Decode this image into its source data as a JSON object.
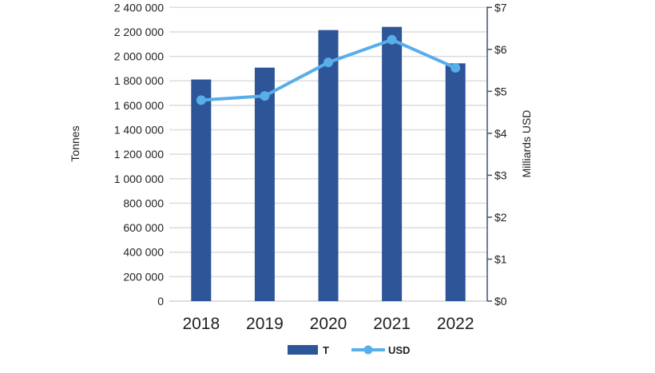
{
  "chart_data": {
    "type": "bar",
    "categories": [
      "2018",
      "2019",
      "2020",
      "2021",
      "2022"
    ],
    "series": [
      {
        "name": "T",
        "type": "bar",
        "axis": "left",
        "color": "#2e5597",
        "values": [
          1811000,
          1908000,
          2215000,
          2241000,
          1943000
        ]
      },
      {
        "name": "USD",
        "type": "line",
        "axis": "right",
        "color": "#57aeea",
        "values": [
          4.79,
          4.89,
          5.69,
          6.23,
          5.56
        ]
      }
    ],
    "ylabel": "Tonnes",
    "ylabel_right": "Milliards USD",
    "ylim": [
      0,
      2400000
    ],
    "ylim_right": [
      0,
      7
    ],
    "yticks": [
      "0",
      "200 000",
      "400 000",
      "600 000",
      "800 000",
      "1 000 000",
      "1 200 000",
      "1 400 000",
      "1 600 000",
      "1 800 000",
      "2 000 000",
      "2 200 000",
      "2 400 000"
    ],
    "yticks_right": [
      "$0",
      "$1",
      "$2",
      "$3",
      "$4",
      "$5",
      "$6",
      "$7"
    ],
    "grid": true,
    "legend": {
      "position": "bottom",
      "entries": [
        "T",
        "USD"
      ]
    }
  }
}
